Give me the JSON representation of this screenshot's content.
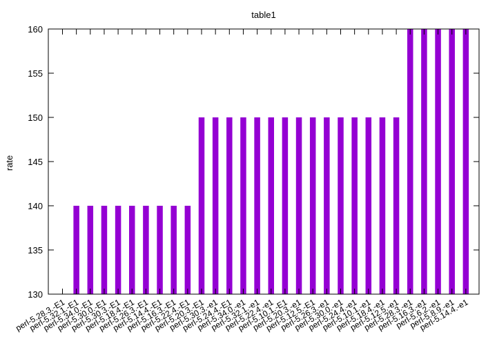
{
  "chart_data": {
    "type": "bar",
    "title": "table1",
    "xlabel": "",
    "ylabel": "rate",
    "ylim": [
      130,
      160
    ],
    "yticks": [
      130,
      135,
      140,
      145,
      150,
      155,
      160
    ],
    "grid": false,
    "legend": "none",
    "bar_color": "#9400d3",
    "categories": [
      "perl-5.28.3.-E1",
      "perl-5.32.1.-E1",
      "perl-5.34.0.-E1",
      "perl-5.30.0.-E1",
      "perl-5.30.3.-E1",
      "perl-5.18.4.-E1",
      "perl-5.26.3.-E1",
      "perl-5.14.4.-E1",
      "perl-5.16.3.-E1",
      "perl-5.22.4.-E1",
      "perl-5.20.3.-E1",
      "perl-5.30.3.-e1",
      "perl-5.24.4.-E1",
      "perl-5.34.0.-e1",
      "perl-5.32.1.-e1",
      "perl-5.22.4.-e1",
      "perl-5.10.1.-E1",
      "perl-5.20.3.-e1",
      "perl-5.12.5.-E1",
      "perl-5.26.3.-e1",
      "perl-5.30.0.-e1",
      "perl-5.24.4.-e1",
      "perl-5.10.1.-e1",
      "perl-5.18.4.-e1",
      "perl-5.12.5.-e1",
      "perl-5.28.3.-e1",
      "perl-5.16.3.-e1",
      "perl-5.6.2.-e1",
      "perl-5.8.9.-e1",
      "perl-5.14.4.-e1"
    ],
    "values": [
      130,
      140,
      140,
      140,
      140,
      140,
      140,
      140,
      140,
      140,
      150,
      150,
      150,
      150,
      150,
      150,
      150,
      150,
      150,
      150,
      150,
      150,
      150,
      150,
      150,
      160,
      160,
      160,
      160,
      160
    ]
  }
}
